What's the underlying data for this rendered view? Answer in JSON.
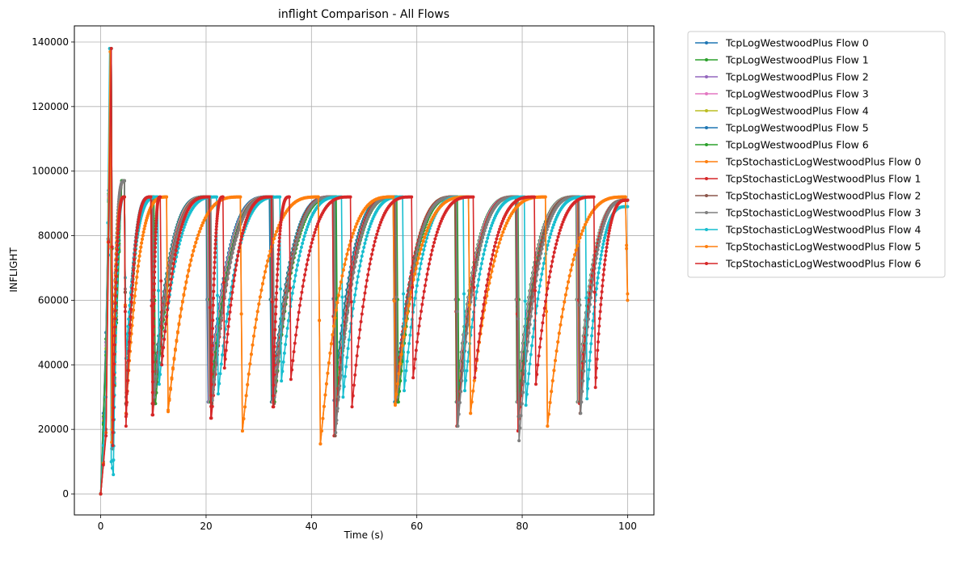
{
  "chart_data": {
    "type": "line",
    "title": "inflight Comparison - All Flows",
    "xlabel": "Time (s)",
    "ylabel": "INFLIGHT",
    "xlim": [
      -5,
      105
    ],
    "ylim": [
      -6500,
      145000
    ],
    "xticks": [
      0,
      20,
      40,
      60,
      80,
      100
    ],
    "yticks": [
      0,
      20000,
      40000,
      60000,
      80000,
      100000,
      120000,
      140000
    ],
    "xtick_labels": [
      "0",
      "20",
      "40",
      "60",
      "80",
      "100"
    ],
    "ytick_labels": [
      "0",
      "20000",
      "40000",
      "60000",
      "80000",
      "100000",
      "120000",
      "140000"
    ],
    "grid": true,
    "legend_position": "outside-upper-right",
    "series": [
      {
        "name": "TcpLogWestwoodPlus Flow 0",
        "color": "#1f77b4",
        "x": [
          0.0,
          1.0,
          2.0,
          2.3,
          3.0,
          4.0,
          4.5,
          4.8,
          9.5,
          9.8,
          20.0,
          20.4,
          32.0,
          32.4,
          44.0,
          44.3,
          55.5,
          55.8,
          67.5,
          67.8,
          79.0,
          79.3,
          90.5,
          90.8,
          100.0
        ],
        "y": [
          0,
          50000,
          138000,
          15000,
          60000,
          97000,
          97000,
          28000,
          92000,
          28000,
          92000,
          28500,
          92000,
          28500,
          92000,
          29000,
          92000,
          28500,
          92000,
          28500,
          92000,
          28500,
          92000,
          28500,
          91000
        ]
      },
      {
        "name": "TcpLogWestwoodPlus Flow 1",
        "color": "#2ca02c",
        "x": [
          0.0,
          1.0,
          2.0,
          2.3,
          3.0,
          4.0,
          4.5,
          4.8,
          9.6,
          9.9,
          20.1,
          20.5,
          32.2,
          32.5,
          44.2,
          44.5,
          55.7,
          56.0,
          67.2,
          67.5,
          78.7,
          79.0,
          90.2,
          90.5,
          100.0
        ],
        "y": [
          0,
          48000,
          138000,
          14000,
          58000,
          97000,
          97000,
          28000,
          92000,
          28000,
          92000,
          28500,
          92000,
          28500,
          92000,
          29000,
          92000,
          28500,
          92000,
          28500,
          92000,
          28500,
          92000,
          28500,
          91000
        ]
      },
      {
        "name": "TcpLogWestwoodPlus Flow 2",
        "color": "#9467bd",
        "x": [
          0.0,
          1.0,
          2.0,
          2.3,
          3.0,
          4.0,
          4.5,
          4.8,
          9.7,
          10.0,
          20.2,
          20.5,
          32.3,
          32.6,
          44.3,
          44.6,
          55.8,
          56.1,
          67.3,
          67.6,
          78.8,
          79.1,
          90.3,
          90.6,
          100.0
        ],
        "y": [
          0,
          47000,
          138000,
          14000,
          57000,
          97000,
          97000,
          28000,
          92000,
          28000,
          92000,
          28500,
          92000,
          28500,
          92000,
          29000,
          92000,
          28500,
          92000,
          28500,
          92000,
          28500,
          92000,
          28500,
          91000
        ]
      },
      {
        "name": "TcpLogWestwoodPlus Flow 3",
        "color": "#e377c2",
        "x": [
          0.0,
          1.0,
          2.0,
          2.3,
          3.0,
          4.0,
          4.5,
          4.8,
          9.8,
          10.1,
          20.3,
          20.6,
          32.4,
          32.7,
          44.4,
          44.7,
          55.9,
          56.2,
          67.4,
          67.7,
          78.9,
          79.2,
          90.4,
          90.7,
          100.0
        ],
        "y": [
          0,
          46000,
          138000,
          14000,
          56000,
          97000,
          97000,
          28000,
          92000,
          28000,
          92000,
          28500,
          92000,
          28500,
          92000,
          29000,
          92000,
          28500,
          92000,
          28500,
          92000,
          28500,
          92000,
          28500,
          91000
        ]
      },
      {
        "name": "TcpLogWestwoodPlus Flow 4",
        "color": "#bcbd22",
        "x": [
          0.0,
          1.0,
          2.0,
          2.3,
          3.0,
          4.0,
          4.5,
          4.8,
          9.9,
          10.2,
          20.4,
          20.7,
          32.5,
          32.8,
          44.5,
          44.8,
          56.0,
          56.3,
          67.5,
          67.8,
          79.0,
          79.3,
          90.5,
          90.8,
          100.0
        ],
        "y": [
          0,
          45000,
          138000,
          14000,
          55000,
          97000,
          97000,
          28000,
          92000,
          28000,
          92000,
          28500,
          92000,
          28500,
          92000,
          29000,
          92000,
          28500,
          92000,
          28500,
          92000,
          28500,
          92000,
          28500,
          91000
        ]
      },
      {
        "name": "TcpLogWestwoodPlus Flow 5",
        "color": "#1f77b4",
        "x": [
          0.0,
          1.0,
          2.0,
          2.3,
          3.0,
          4.0,
          4.5,
          4.8,
          10.0,
          10.3,
          20.5,
          20.8,
          32.6,
          32.9,
          44.6,
          44.9,
          56.1,
          56.4,
          67.6,
          67.9,
          79.1,
          79.4,
          90.6,
          90.9,
          100.0
        ],
        "y": [
          0,
          44000,
          138000,
          14000,
          54000,
          97000,
          97000,
          28000,
          92000,
          28000,
          92000,
          28500,
          92000,
          28500,
          92000,
          29000,
          92000,
          28500,
          92000,
          28500,
          92000,
          28500,
          92000,
          28500,
          91000
        ]
      },
      {
        "name": "TcpLogWestwoodPlus Flow 6",
        "color": "#2ca02c",
        "x": [
          0.0,
          1.0,
          2.0,
          2.3,
          3.0,
          4.0,
          4.5,
          4.8,
          10.1,
          10.4,
          20.6,
          20.9,
          32.7,
          33.0,
          44.7,
          45.0,
          56.2,
          56.5,
          67.7,
          68.0,
          79.2,
          79.5,
          90.7,
          91.0,
          100.0
        ],
        "y": [
          0,
          43000,
          138000,
          14000,
          53000,
          97000,
          97000,
          28000,
          92000,
          28000,
          92000,
          28500,
          92000,
          28500,
          92000,
          29000,
          92000,
          28500,
          92000,
          28500,
          92000,
          28500,
          92000,
          28500,
          91000
        ]
      },
      {
        "name": "TcpStochasticLogWestwoodPlus Flow 0",
        "color": "#ff7f0e",
        "x": [
          0.0,
          1.0,
          1.8,
          2.1,
          4.5,
          4.8,
          12.5,
          12.8,
          26.5,
          26.9,
          41.3,
          41.7,
          55.5,
          55.9,
          69.8,
          70.2,
          84.4,
          84.8,
          99.6,
          100.0
        ],
        "y": [
          0,
          20000,
          138000,
          16000,
          92000,
          25000,
          92000,
          25500,
          92000,
          19500,
          92000,
          15500,
          92000,
          28000,
          92000,
          25000,
          92000,
          21000,
          92000,
          62000
        ]
      },
      {
        "name": "TcpStochasticLogWestwoodPlus Flow 1",
        "color": "#d62728",
        "x": [
          0.0,
          1.0,
          1.9,
          2.2,
          4.5,
          4.8,
          9.6,
          9.9,
          20.7,
          21.0,
          32.5,
          32.8,
          44.0,
          44.3,
          55.7,
          56.0,
          67.3,
          67.6,
          78.9,
          79.2,
          90.6,
          90.9,
          100.0
        ],
        "y": [
          0,
          19000,
          138000,
          15000,
          92000,
          24000,
          92000,
          24500,
          92000,
          23500,
          92000,
          27000,
          92000,
          18000,
          92000,
          30000,
          92000,
          21000,
          92000,
          19500,
          92000,
          28000,
          91000
        ]
      },
      {
        "name": "TcpStochasticLogWestwoodPlus Flow 2",
        "color": "#8c564b",
        "x": [
          0.0,
          1.0,
          1.9,
          2.2,
          4.5,
          4.8,
          9.8,
          10.1,
          20.8,
          21.1,
          32.6,
          32.9,
          44.2,
          44.5,
          55.8,
          56.1,
          67.4,
          67.7,
          79.0,
          79.3,
          90.7,
          91.0,
          100.0
        ],
        "y": [
          0,
          19000,
          138000,
          15000,
          97000,
          28000,
          92000,
          28000,
          92000,
          28000,
          92000,
          28000,
          92000,
          18000,
          92000,
          29000,
          92000,
          21000,
          92000,
          24000,
          92000,
          25000,
          91000
        ]
      },
      {
        "name": "TcpStochasticLogWestwoodPlus Flow 3",
        "color": "#7f7f7f",
        "x": [
          0.0,
          1.0,
          1.8,
          2.1,
          4.5,
          4.8,
          9.9,
          10.2,
          20.9,
          21.2,
          32.7,
          33.0,
          44.3,
          44.6,
          56.0,
          56.3,
          67.5,
          67.8,
          79.1,
          79.4,
          90.8,
          91.1,
          100.0
        ],
        "y": [
          0,
          20000,
          138000,
          14000,
          97000,
          30000,
          92000,
          30000,
          92000,
          29000,
          92000,
          30000,
          92000,
          19000,
          92000,
          30000,
          92000,
          21000,
          92000,
          16500,
          92000,
          25000,
          91000
        ]
      },
      {
        "name": "TcpStochasticLogWestwoodPlus Flow 4",
        "color": "#17becf",
        "x": [
          0.0,
          1.0,
          1.7,
          2.0,
          2.4,
          4.5,
          4.8,
          10.8,
          11.1,
          22.0,
          22.3,
          34.0,
          34.3,
          45.7,
          46.0,
          57.3,
          57.6,
          68.8,
          69.1,
          80.4,
          80.7,
          92.0,
          92.3,
          100.0
        ],
        "y": [
          0,
          30000,
          138000,
          10000,
          6000,
          92000,
          42000,
          92000,
          34000,
          92000,
          31000,
          92000,
          35000,
          92000,
          30000,
          92000,
          32000,
          92000,
          32000,
          92000,
          27500,
          92000,
          29500,
          89000
        ]
      },
      {
        "name": "TcpStochasticLogWestwoodPlus Flow 5",
        "color": "#ff7f0e",
        "x": [
          0.0,
          1.0,
          1.8,
          2.1,
          4.5,
          4.8,
          12.5,
          12.8,
          26.5,
          26.9,
          41.3,
          41.7,
          55.5,
          55.9,
          69.8,
          70.2,
          84.4,
          84.8,
          99.6,
          100.0
        ],
        "y": [
          0,
          19000,
          137000,
          16000,
          92000,
          25000,
          92000,
          26000,
          92000,
          19500,
          92000,
          15500,
          92000,
          27500,
          92000,
          25000,
          92000,
          21000,
          92000,
          60000
        ]
      },
      {
        "name": "TcpStochasticLogWestwoodPlus Flow 6",
        "color": "#d62728",
        "x": [
          0.0,
          1.0,
          2.0,
          2.3,
          4.5,
          4.8,
          9.5,
          9.8,
          11.3,
          11.6,
          20.6,
          20.9,
          23.2,
          23.5,
          32.4,
          32.7,
          35.8,
          36.1,
          47.4,
          47.7,
          59.0,
          59.3,
          70.7,
          71.0,
          82.3,
          82.6,
          93.6,
          93.9,
          100.0
        ],
        "y": [
          0,
          18000,
          138000,
          15000,
          92000,
          21000,
          92000,
          24500,
          92000,
          40000,
          92000,
          23500,
          92000,
          39000,
          92000,
          27000,
          92000,
          35500,
          92000,
          27000,
          92000,
          36000,
          92000,
          36000,
          92000,
          34000,
          92000,
          33000,
          91000
        ]
      }
    ]
  }
}
